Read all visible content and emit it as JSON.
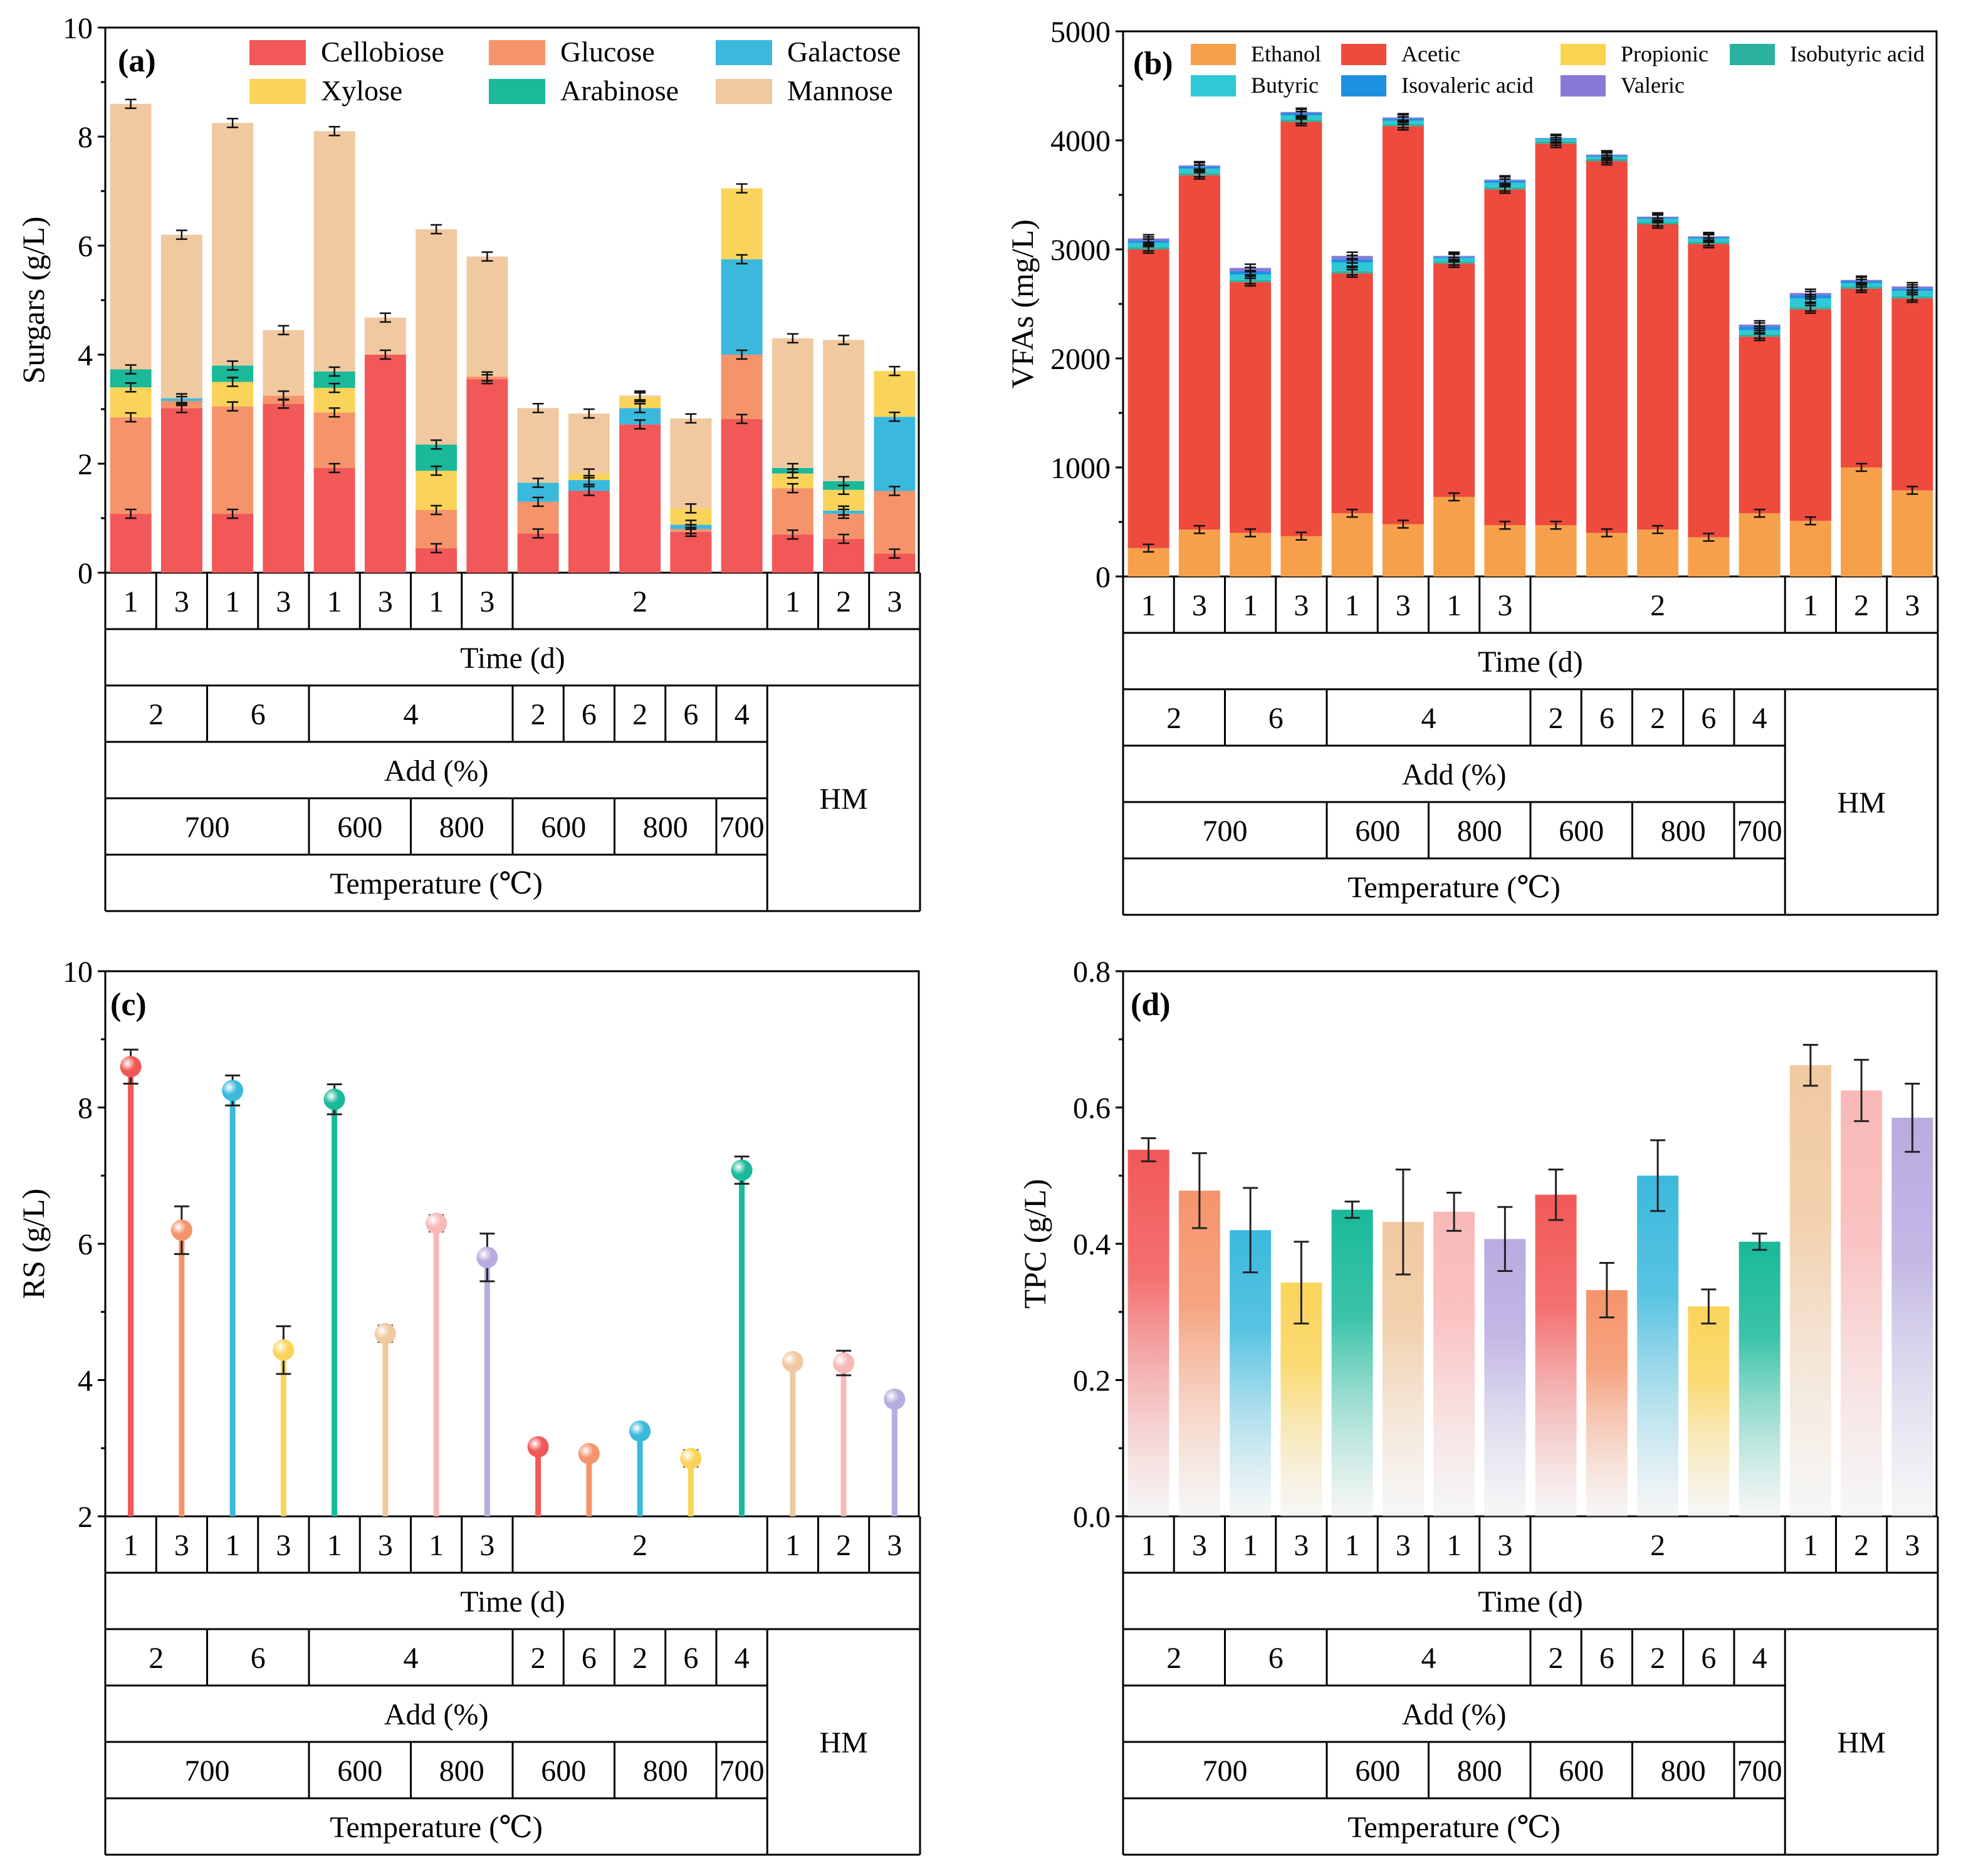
{
  "common": {
    "time_label": "Time (d)",
    "add_label": "Add (%)",
    "temp_label": "Temperature (℃)",
    "hm_label": "HM",
    "time_cells": [
      "1",
      "3",
      "1",
      "3",
      "1",
      "3",
      "1",
      "3",
      "2",
      "1",
      "2",
      "3"
    ],
    "add_cells": [
      "2",
      "6",
      "4",
      "2",
      "6",
      "2",
      "6",
      "4"
    ],
    "temp_cells": [
      "700",
      "600",
      "800",
      "600",
      "800",
      "700"
    ]
  },
  "colors": {
    "cellobiose": "#F25858",
    "glucose": "#F5946B",
    "galactose": "#3BB9DD",
    "xylose": "#FAD45A",
    "arabinose": "#19B99A",
    "mannose": "#F0C9A0",
    "ethanol": "#F6A04C",
    "acetic": "#EE4A3D",
    "propionic": "#FBD34E",
    "isobutyric": "#2BB3A0",
    "butyric": "#2EC8D6",
    "isovaleric": "#1E90E0",
    "valeric": "#8A78D8"
  },
  "chart_data": [
    {
      "type": "bar",
      "panel": "(a)",
      "stacked": true,
      "ylabel": "Surgars (g/L)",
      "ylim": [
        0,
        10
      ],
      "yticks": [
        "0",
        "2",
        "4",
        "6",
        "8",
        "10"
      ],
      "legend": [
        "Cellobiose",
        "Glucose",
        "Galactose",
        "Xylose",
        "Arabinose",
        "Mannose"
      ],
      "series": [
        {
          "name": "Cellobiose",
          "color": "cellobiose",
          "values": [
            1.08,
            3.02,
            1.08,
            3.1,
            1.92,
            4.0,
            0.45,
            3.55,
            0.72,
            1.5,
            2.72,
            0.75,
            2.82,
            0.7,
            0.62,
            0.35
          ]
        },
        {
          "name": "Glucose",
          "color": "glucose",
          "values": [
            1.77,
            0.13,
            1.97,
            0.15,
            1.02,
            0.0,
            0.7,
            0.05,
            0.58,
            0.0,
            0.0,
            0.05,
            1.18,
            0.85,
            0.46,
            1.15
          ]
        },
        {
          "name": "Galactose",
          "color": "galactose",
          "values": [
            0.0,
            0.05,
            0.0,
            0.0,
            0.0,
            0.0,
            0.0,
            0.0,
            0.35,
            0.2,
            0.3,
            0.08,
            1.75,
            0.0,
            0.06,
            1.36
          ]
        },
        {
          "name": "Xylose",
          "color": "xylose",
          "values": [
            0.55,
            0.0,
            0.45,
            0.0,
            0.45,
            0.0,
            0.72,
            0.0,
            0.0,
            0.12,
            0.2,
            0.3,
            1.3,
            0.27,
            0.38,
            0.84
          ]
        },
        {
          "name": "Arabinose",
          "color": "arabinose",
          "values": [
            0.33,
            0.0,
            0.3,
            0.0,
            0.3,
            0.0,
            0.48,
            0.0,
            0.0,
            0.0,
            0.0,
            0.0,
            0.0,
            0.1,
            0.16,
            0.0
          ]
        },
        {
          "name": "Mannose",
          "color": "mannose",
          "values": [
            4.87,
            3.0,
            4.45,
            1.2,
            4.41,
            0.68,
            3.95,
            2.2,
            1.37,
            1.1,
            0.03,
            1.65,
            0.0,
            2.38,
            2.59,
            0.0
          ]
        }
      ]
    },
    {
      "type": "bar",
      "panel": "(b)",
      "stacked": true,
      "ylabel": "VFAs (mg/L)",
      "ylim": [
        0,
        5000
      ],
      "yticks": [
        "0",
        "1000",
        "2000",
        "3000",
        "4000",
        "5000"
      ],
      "legend": [
        "Ethanol",
        "Acetic",
        "Propionic",
        "Isobutyric acid",
        "Butyric",
        "Isovaleric acid",
        "Valeric"
      ],
      "series": [
        {
          "name": "Ethanol",
          "color": "ethanol",
          "values": [
            260,
            430,
            400,
            370,
            580,
            480,
            730,
            470,
            470,
            400,
            430,
            360,
            580,
            510,
            1000,
            790
          ]
        },
        {
          "name": "Acetic",
          "color": "acetic",
          "values": [
            2740,
            3250,
            2300,
            3800,
            2200,
            3650,
            2140,
            3080,
            3500,
            3410,
            2800,
            2690,
            1620,
            1940,
            1640,
            1760
          ]
        },
        {
          "name": "Propionic",
          "color": "propionic",
          "values": [
            0,
            0,
            0,
            0,
            0,
            0,
            0,
            0,
            0,
            0,
            0,
            0,
            0,
            0,
            0,
            0
          ]
        },
        {
          "name": "Isobutyric acid",
          "color": "isobutyric",
          "values": [
            20,
            20,
            20,
            20,
            20,
            20,
            20,
            20,
            20,
            20,
            20,
            20,
            20,
            20,
            20,
            20
          ]
        },
        {
          "name": "Butyric",
          "color": "butyric",
          "values": [
            40,
            40,
            50,
            40,
            80,
            30,
            30,
            40,
            20,
            20,
            30,
            30,
            40,
            80,
            30,
            50
          ]
        },
        {
          "name": "Isovaleric acid",
          "color": "isovaleric",
          "values": [
            20,
            20,
            30,
            20,
            30,
            20,
            10,
            20,
            10,
            10,
            10,
            10,
            30,
            30,
            20,
            20
          ]
        },
        {
          "name": "Valeric",
          "color": "valeric",
          "values": [
            20,
            10,
            30,
            10,
            30,
            10,
            10,
            10,
            0,
            10,
            10,
            10,
            20,
            20,
            10,
            20
          ]
        }
      ]
    },
    {
      "type": "lollipop",
      "panel": "(c)",
      "ylabel": "RS (g/L)",
      "ylim": [
        2,
        10
      ],
      "yticks": [
        "2",
        "4",
        "6",
        "8",
        "10"
      ],
      "values": [
        8.6,
        6.2,
        8.25,
        4.44,
        8.12,
        4.68,
        6.3,
        5.8,
        3.02,
        2.92,
        3.25,
        2.85,
        7.08,
        4.27,
        4.25,
        3.72
      ],
      "errors": [
        0.25,
        0.35,
        0.22,
        0.35,
        0.22,
        0.12,
        0.12,
        0.35,
        0.1,
        0.1,
        0.1,
        0.12,
        0.2,
        0.1,
        0.18,
        0.1
      ],
      "colors": [
        "cellobiose",
        "glucose",
        "galactose",
        "xylose",
        "arabinose",
        "mannose",
        "#F9B8B8",
        "#B8ABE0",
        "cellobiose",
        "glucose",
        "galactose",
        "xylose",
        "arabinose",
        "mannose",
        "#F9B8B8",
        "#B8ABE0"
      ]
    },
    {
      "type": "bar",
      "panel": "(d)",
      "ylabel": "TPC (g/L)",
      "ylim": [
        0,
        0.8
      ],
      "yticks": [
        "0.0",
        "0.2",
        "0.4",
        "0.6",
        "0.8"
      ],
      "values": [
        0.538,
        0.478,
        0.42,
        0.343,
        0.45,
        0.432,
        0.447,
        0.407,
        0.472,
        0.332,
        0.5,
        0.308,
        0.403,
        0.662,
        0.625,
        0.585
      ],
      "errors": [
        0.017,
        0.055,
        0.062,
        0.06,
        0.012,
        0.077,
        0.028,
        0.047,
        0.037,
        0.04,
        0.052,
        0.025,
        0.012,
        0.03,
        0.045,
        0.05
      ],
      "colors": [
        "cellobiose",
        "glucose",
        "galactose",
        "xylose",
        "arabinose",
        "mannose",
        "#F9B8B8",
        "#B8ABE0",
        "cellobiose",
        "glucose",
        "galactose",
        "xylose",
        "arabinose",
        "mannose",
        "#F9B8B8",
        "#B8ABE0"
      ]
    }
  ]
}
